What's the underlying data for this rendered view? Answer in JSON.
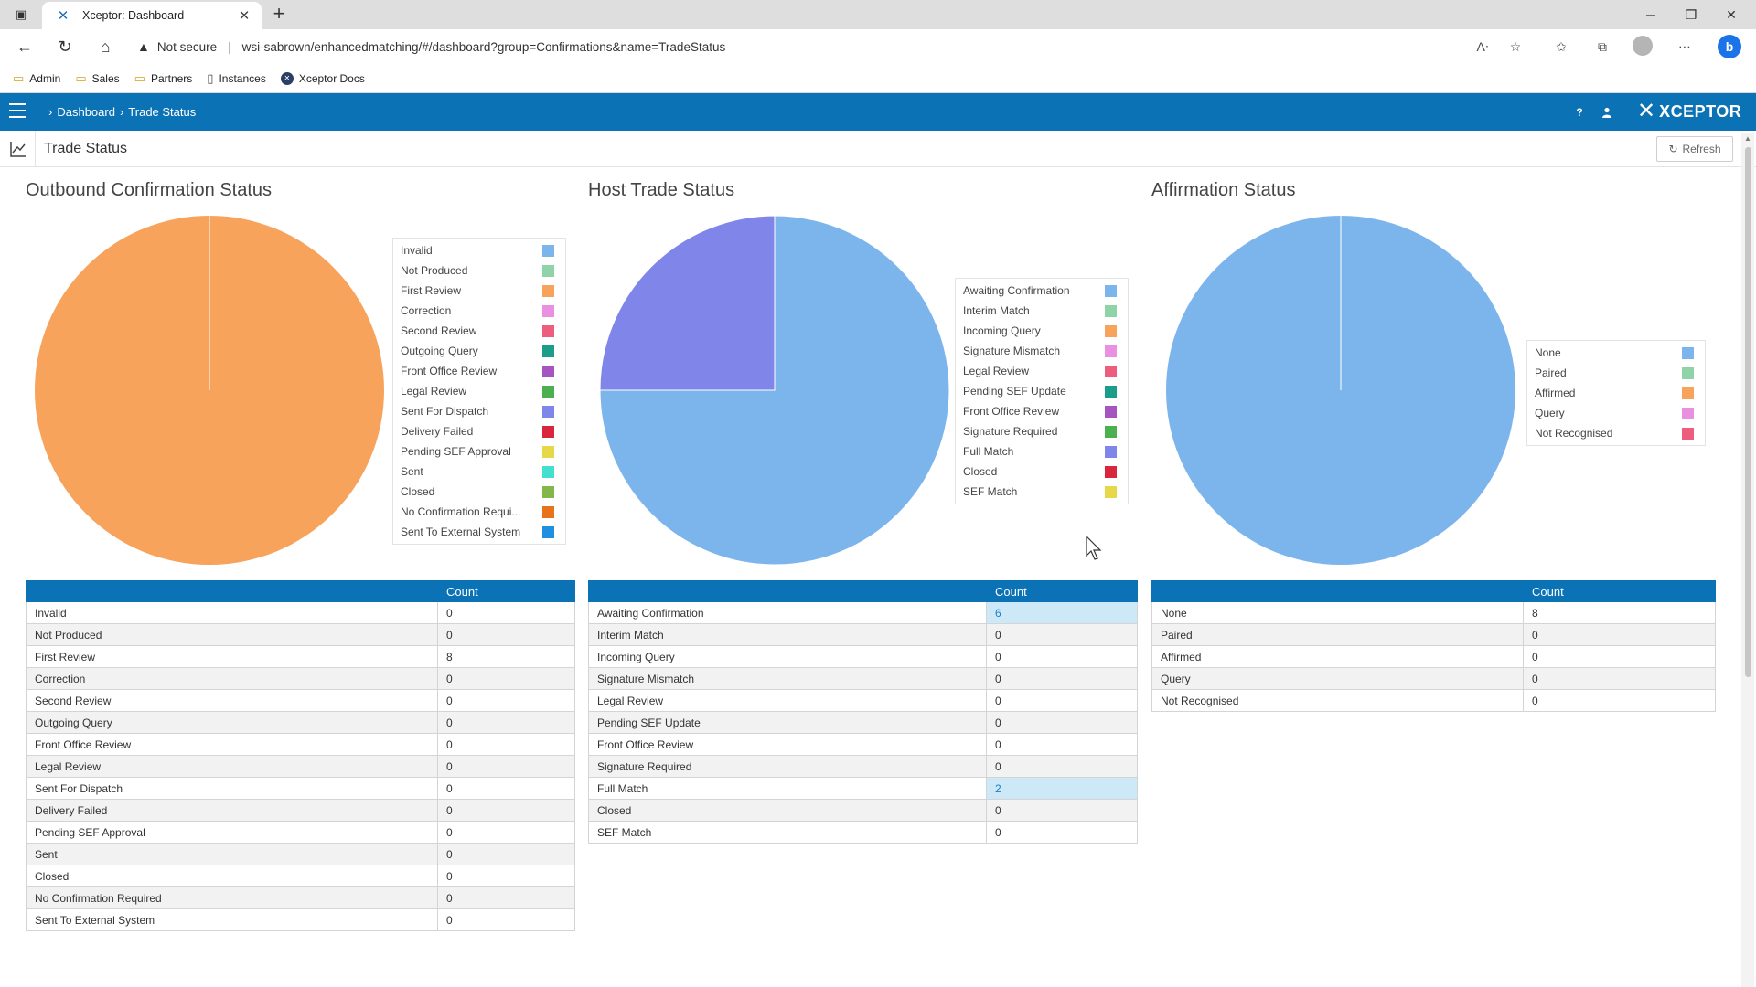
{
  "browser": {
    "tab_title": "Xceptor: Dashboard",
    "not_secure": "Not secure",
    "url": "wsi-sabrown/enhancedmatching/#/dashboard?group=Confirmations&name=TradeStatus",
    "bookmarks": [
      "Admin",
      "Sales",
      "Partners",
      "Instances",
      "Xceptor Docs"
    ]
  },
  "app": {
    "breadcrumb": [
      "Dashboard",
      "Trade Status"
    ],
    "brand": "XCEPTOR",
    "page_title": "Trade Status",
    "refresh_label": "Refresh",
    "help_icon": "?"
  },
  "colors": {
    "header": "#0b72b5",
    "highlight": "#cde9f8"
  },
  "panels": [
    {
      "title": "Outbound Confirmation Status",
      "count_header": "Count",
      "rows": [
        {
          "label": "Invalid",
          "count": "0",
          "color": "#7cb5ec"
        },
        {
          "label": "Not Produced",
          "count": "0",
          "color": "#90d3a8"
        },
        {
          "label": "First Review",
          "count": "8",
          "color": "#f7a35c"
        },
        {
          "label": "Correction",
          "count": "0",
          "color": "#e990e0"
        },
        {
          "label": "Second Review",
          "count": "0",
          "color": "#ec5d7e"
        },
        {
          "label": "Outgoing Query",
          "count": "0",
          "color": "#1a9e8a"
        },
        {
          "label": "Front Office Review",
          "count": "0",
          "color": "#a654bf"
        },
        {
          "label": "Legal Review",
          "count": "0",
          "color": "#4cb050"
        },
        {
          "label": "Sent For Dispatch",
          "count": "0",
          "color": "#8085e9"
        },
        {
          "label": "Delivery Failed",
          "count": "0",
          "color": "#d9263d"
        },
        {
          "label": "Pending SEF Approval",
          "count": "0",
          "color": "#e7d84a"
        },
        {
          "label": "Sent",
          "count": "0",
          "color": "#43e0d2"
        },
        {
          "label": "Closed",
          "count": "0",
          "color": "#82b84a"
        },
        {
          "label": "No Confirmation Required",
          "legend_label": "No Confirmation Requi...",
          "count": "0",
          "color": "#e8731b"
        },
        {
          "label": "Sent To External System",
          "count": "0",
          "color": "#1e90e0"
        }
      ]
    },
    {
      "title": "Host Trade Status",
      "count_header": "Count",
      "rows": [
        {
          "label": "Awaiting Confirmation",
          "count": "6",
          "color": "#7cb5ec",
          "highlight": true
        },
        {
          "label": "Interim Match",
          "count": "0",
          "color": "#90d3a8"
        },
        {
          "label": "Incoming Query",
          "count": "0",
          "color": "#f7a35c"
        },
        {
          "label": "Signature Mismatch",
          "count": "0",
          "color": "#e990e0"
        },
        {
          "label": "Legal Review",
          "count": "0",
          "color": "#ec5d7e"
        },
        {
          "label": "Pending SEF Update",
          "count": "0",
          "color": "#1a9e8a"
        },
        {
          "label": "Front Office Review",
          "count": "0",
          "color": "#a654bf"
        },
        {
          "label": "Signature Required",
          "count": "0",
          "color": "#4cb050"
        },
        {
          "label": "Full Match",
          "count": "2",
          "color": "#8085e9",
          "highlight": true
        },
        {
          "label": "Closed",
          "count": "0",
          "color": "#d9263d"
        },
        {
          "label": "SEF Match",
          "count": "0",
          "color": "#e7d84a"
        }
      ]
    },
    {
      "title": "Affirmation Status",
      "count_header": "Count",
      "rows": [
        {
          "label": "None",
          "count": "8",
          "color": "#7cb5ec"
        },
        {
          "label": "Paired",
          "count": "0",
          "color": "#90d3a8"
        },
        {
          "label": "Affirmed",
          "count": "0",
          "color": "#f7a35c"
        },
        {
          "label": "Query",
          "count": "0",
          "color": "#e990e0"
        },
        {
          "label": "Not Recognised",
          "count": "0",
          "color": "#ec5d7e"
        }
      ]
    }
  ]
}
